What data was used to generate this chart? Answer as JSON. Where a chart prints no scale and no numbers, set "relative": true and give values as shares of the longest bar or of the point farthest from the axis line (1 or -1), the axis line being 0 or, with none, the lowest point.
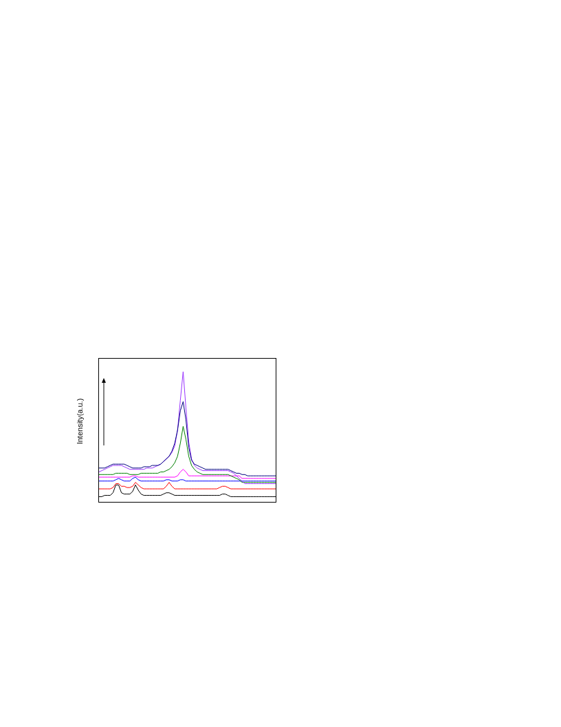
{
  "chart_data": {
    "type": "line",
    "relative": true,
    "ylabel": "Intensity(a.u.)",
    "categories": [
      null,
      null,
      null,
      null,
      null,
      null,
      null,
      null,
      null,
      null,
      null,
      null,
      null,
      null,
      null,
      null,
      null,
      null,
      null,
      null,
      null,
      null,
      null,
      null,
      null,
      null,
      null,
      null,
      null,
      null,
      null,
      null,
      null,
      null,
      null,
      null,
      null,
      null,
      null,
      null,
      null,
      null,
      null,
      null,
      null,
      null,
      null,
      null,
      null,
      null,
      null,
      null,
      null,
      null,
      null,
      null,
      null,
      null,
      null,
      null,
      null,
      null,
      null,
      null
    ],
    "series": [
      {
        "color": "#000000",
        "values": [
          0.04,
          0.04,
          0.05,
          0.05,
          0.05,
          0.07,
          0.13,
          0.13,
          0.07,
          0.06,
          0.06,
          0.06,
          0.08,
          0.13,
          0.09,
          0.06,
          0.05,
          0.05,
          0.05,
          0.05,
          0.05,
          0.05,
          0.05,
          0.06,
          0.07,
          0.07,
          0.06,
          0.05,
          0.05,
          0.05,
          0.05,
          0.05,
          0.05,
          0.05,
          0.05,
          0.05,
          0.05,
          0.05,
          0.05,
          0.05,
          0.05,
          0.05,
          0.05,
          0.05,
          0.06,
          0.06,
          0.05,
          0.04,
          0.04,
          0.04,
          0.04,
          0.04,
          0.04,
          0.04,
          0.04,
          0.04,
          0.04,
          0.04,
          0.04,
          0.04,
          0.04,
          0.04,
          0.04,
          0.04
        ]
      },
      {
        "color": "#ff0000",
        "values": [
          0.1,
          0.1,
          0.1,
          0.1,
          0.1,
          0.11,
          0.14,
          0.14,
          0.12,
          0.12,
          0.11,
          0.11,
          0.12,
          0.15,
          0.13,
          0.11,
          0.1,
          0.1,
          0.1,
          0.1,
          0.1,
          0.1,
          0.1,
          0.1,
          0.12,
          0.15,
          0.12,
          0.1,
          0.1,
          0.1,
          0.1,
          0.1,
          0.1,
          0.1,
          0.1,
          0.1,
          0.1,
          0.1,
          0.1,
          0.1,
          0.1,
          0.1,
          0.1,
          0.11,
          0.12,
          0.12,
          0.11,
          0.1,
          0.1,
          0.1,
          0.1,
          0.1,
          0.1,
          0.1,
          0.1,
          0.1,
          0.1,
          0.1,
          0.1,
          0.1,
          0.1,
          0.1,
          0.1,
          0.1
        ]
      },
      {
        "color": "#0000ff",
        "values": [
          0.16,
          0.16,
          0.16,
          0.16,
          0.16,
          0.16,
          0.17,
          0.18,
          0.17,
          0.16,
          0.16,
          0.16,
          0.18,
          0.19,
          0.17,
          0.16,
          0.16,
          0.16,
          0.16,
          0.16,
          0.16,
          0.16,
          0.16,
          0.16,
          0.17,
          0.17,
          0.16,
          0.16,
          0.16,
          0.17,
          0.17,
          0.16,
          0.16,
          0.16,
          0.16,
          0.16,
          0.16,
          0.16,
          0.16,
          0.16,
          0.16,
          0.16,
          0.16,
          0.16,
          0.16,
          0.16,
          0.16,
          0.16,
          0.16,
          0.16,
          0.16,
          0.16,
          0.16,
          0.16,
          0.16,
          0.16,
          0.16,
          0.16,
          0.16,
          0.16,
          0.16,
          0.16,
          0.16,
          0.16
        ]
      },
      {
        "color": "#ff00ff",
        "values": [
          0.19,
          0.19,
          0.19,
          0.19,
          0.19,
          0.19,
          0.19,
          0.19,
          0.19,
          0.19,
          0.19,
          0.19,
          0.2,
          0.2,
          0.19,
          0.19,
          0.19,
          0.19,
          0.19,
          0.19,
          0.19,
          0.19,
          0.19,
          0.19,
          0.19,
          0.19,
          0.19,
          0.19,
          0.2,
          0.23,
          0.25,
          0.23,
          0.2,
          0.2,
          0.2,
          0.2,
          0.2,
          0.2,
          0.2,
          0.2,
          0.2,
          0.2,
          0.2,
          0.2,
          0.2,
          0.2,
          0.2,
          0.2,
          0.2,
          0.2,
          0.2,
          0.18,
          0.18,
          0.18,
          0.18,
          0.18,
          0.18,
          0.18,
          0.18,
          0.18,
          0.18,
          0.18,
          0.18,
          0.18
        ]
      },
      {
        "color": "#008000",
        "values": [
          0.21,
          0.21,
          0.21,
          0.21,
          0.21,
          0.21,
          0.22,
          0.22,
          0.22,
          0.22,
          0.22,
          0.21,
          0.21,
          0.21,
          0.21,
          0.22,
          0.22,
          0.22,
          0.22,
          0.22,
          0.22,
          0.22,
          0.23,
          0.23,
          0.24,
          0.25,
          0.27,
          0.3,
          0.35,
          0.45,
          0.58,
          0.48,
          0.35,
          0.28,
          0.25,
          0.23,
          0.22,
          0.21,
          0.21,
          0.21,
          0.21,
          0.21,
          0.21,
          0.21,
          0.21,
          0.21,
          0.21,
          0.2,
          0.19,
          0.18,
          0.17,
          0.15,
          0.15,
          0.15,
          0.15,
          0.15,
          0.15,
          0.15,
          0.15,
          0.15,
          0.15,
          0.15,
          0.15,
          0.15
        ]
      },
      {
        "color": "#9933ff",
        "values": [
          0.23,
          0.24,
          0.25,
          0.26,
          0.27,
          0.28,
          0.28,
          0.28,
          0.28,
          0.27,
          0.26,
          0.25,
          0.25,
          0.25,
          0.25,
          0.25,
          0.25,
          0.26,
          0.26,
          0.26,
          0.27,
          0.28,
          0.29,
          0.31,
          0.33,
          0.35,
          0.38,
          0.43,
          0.55,
          0.78,
          1,
          0.72,
          0.46,
          0.33,
          0.28,
          0.26,
          0.25,
          0.24,
          0.24,
          0.24,
          0.24,
          0.24,
          0.24,
          0.24,
          0.24,
          0.24,
          0.24,
          0.23,
          0.22,
          0.2,
          0.18,
          0.16,
          0.14,
          0.14,
          0.14,
          0.14,
          0.14,
          0.14,
          0.14,
          0.14,
          0.14,
          0.14,
          0.14,
          0.14
        ]
      },
      {
        "color": "#000080",
        "values": [
          0.26,
          0.26,
          0.26,
          0.27,
          0.28,
          0.29,
          0.29,
          0.29,
          0.29,
          0.29,
          0.28,
          0.27,
          0.26,
          0.26,
          0.26,
          0.26,
          0.27,
          0.27,
          0.27,
          0.28,
          0.28,
          0.28,
          0.29,
          0.31,
          0.33,
          0.35,
          0.39,
          0.45,
          0.55,
          0.7,
          0.77,
          0.63,
          0.42,
          0.32,
          0.29,
          0.28,
          0.27,
          0.26,
          0.25,
          0.25,
          0.25,
          0.25,
          0.25,
          0.25,
          0.25,
          0.25,
          0.25,
          0.24,
          0.23,
          0.22,
          0.22,
          0.21,
          0.21,
          0.2,
          0.2,
          0.2,
          0.2,
          0.2,
          0.2,
          0.2,
          0.2,
          0.2,
          0.2,
          0.2
        ]
      }
    ]
  }
}
